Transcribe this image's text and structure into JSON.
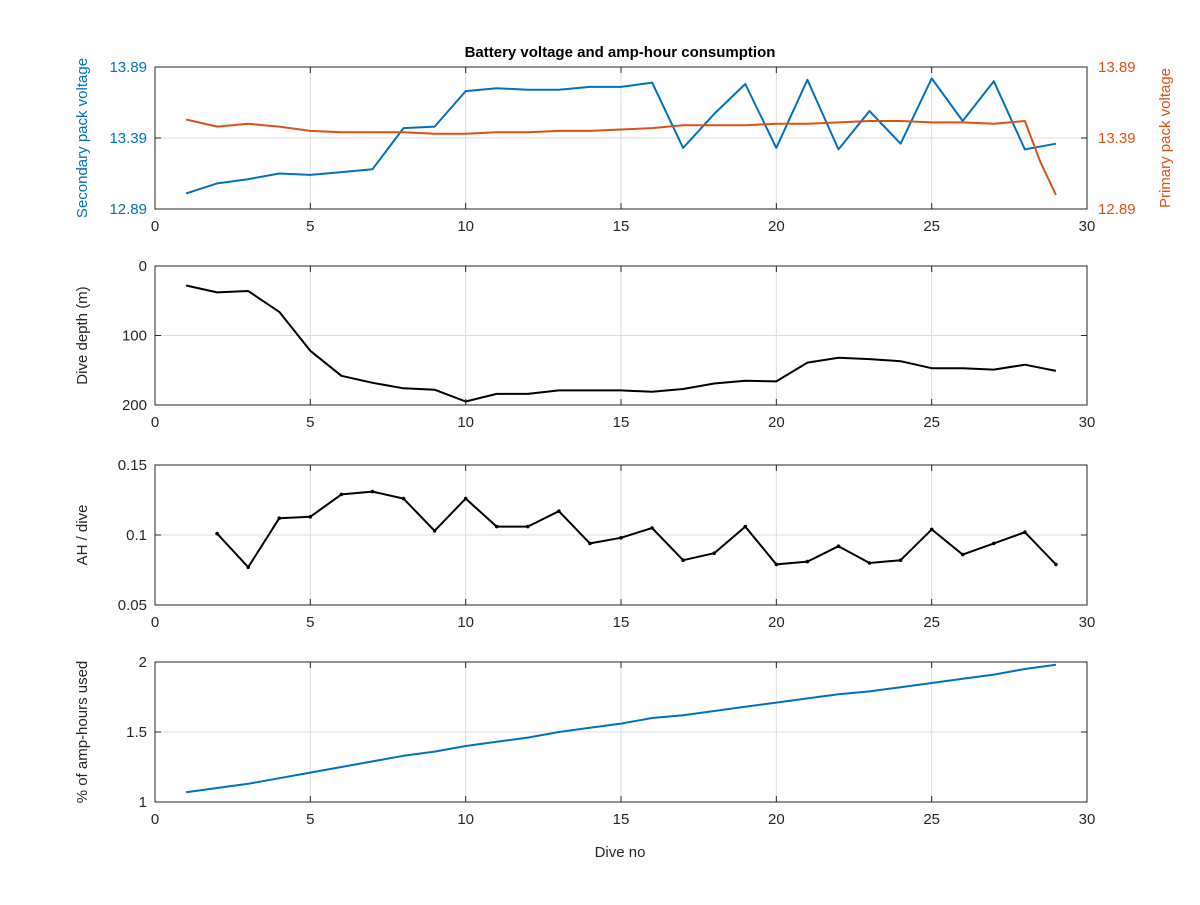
{
  "figure": {
    "title": "Battery voltage and amp-hour consumption",
    "xlabel": "Dive no"
  },
  "colors": {
    "secondary": "#0072BD",
    "primary": "#D95319",
    "black": "#000000",
    "grid": "#dcdcdc",
    "axis": "#262626"
  },
  "chart_data": [
    {
      "type": "line",
      "title": "Battery voltage and amp-hour consumption",
      "xlabel": "",
      "ylabel": "Secondary pack voltage",
      "ylabel_right": "Primary pack voltage",
      "xlim": [
        0,
        30
      ],
      "xticks": [
        0,
        5,
        10,
        15,
        20,
        25,
        30
      ],
      "ylim": [
        12.89,
        13.89
      ],
      "yticks": [
        12.89,
        13.39,
        13.89
      ],
      "ylim_right": [
        12.89,
        13.89
      ],
      "yticks_right": [
        12.89,
        13.39,
        13.89
      ],
      "grid": true,
      "series": [
        {
          "axis": "left",
          "color": "#0072BD",
          "x": [
            1,
            2,
            3,
            4,
            5,
            6,
            7,
            8,
            9,
            10,
            11,
            12,
            13,
            14,
            15,
            16,
            17,
            18,
            19,
            20,
            21,
            22,
            23,
            24,
            25,
            26,
            27,
            28,
            29
          ],
          "values": [
            13.0,
            13.07,
            13.1,
            13.14,
            13.13,
            13.15,
            13.17,
            13.46,
            13.47,
            13.72,
            13.74,
            13.73,
            13.73,
            13.75,
            13.75,
            13.78,
            13.32,
            13.56,
            13.77,
            13.32,
            13.8,
            13.31,
            13.58,
            13.35,
            13.81,
            13.51,
            13.79,
            13.31,
            13.35
          ]
        },
        {
          "axis": "right",
          "color": "#D95319",
          "x": [
            1,
            2,
            3,
            4,
            5,
            6,
            7,
            8,
            9,
            10,
            11,
            12,
            13,
            14,
            15,
            16,
            17,
            18,
            19,
            20,
            21,
            22,
            23,
            24,
            25,
            26,
            27,
            28,
            28.5,
            29
          ],
          "values": [
            13.52,
            13.47,
            13.49,
            13.47,
            13.44,
            13.43,
            13.43,
            13.43,
            13.42,
            13.42,
            13.43,
            13.43,
            13.44,
            13.44,
            13.45,
            13.46,
            13.48,
            13.48,
            13.48,
            13.49,
            13.49,
            13.5,
            13.51,
            13.51,
            13.5,
            13.5,
            13.49,
            13.51,
            13.22,
            12.99
          ]
        }
      ]
    },
    {
      "type": "line",
      "title": "",
      "xlabel": "",
      "ylabel": "Dive depth (m)",
      "xlim": [
        0,
        30
      ],
      "xticks": [
        0,
        5,
        10,
        15,
        20,
        25,
        30
      ],
      "ylim": [
        0,
        200
      ],
      "yticks": [
        0,
        100,
        200
      ],
      "yreversed": true,
      "grid": true,
      "series": [
        {
          "color": "#000000",
          "x": [
            1,
            2,
            3,
            4,
            5,
            6,
            7,
            8,
            9,
            10,
            11,
            12,
            13,
            14,
            15,
            16,
            17,
            18,
            19,
            20,
            21,
            22,
            23,
            24,
            25,
            26,
            27,
            28,
            29
          ],
          "values": [
            28,
            38,
            36,
            66,
            122,
            158,
            168,
            176,
            178,
            195,
            184,
            184,
            179,
            179,
            179,
            181,
            177,
            169,
            165,
            166,
            139,
            132,
            134,
            137,
            147,
            147,
            149,
            142,
            151
          ]
        }
      ]
    },
    {
      "type": "line",
      "title": "",
      "xlabel": "",
      "ylabel": "AH / dive",
      "xlim": [
        0,
        30
      ],
      "xticks": [
        0,
        5,
        10,
        15,
        20,
        25,
        30
      ],
      "ylim": [
        0.05,
        0.15
      ],
      "yticks": [
        0.05,
        0.1,
        0.15
      ],
      "grid": true,
      "series": [
        {
          "color": "#000000",
          "marker": "point",
          "x": [
            2,
            3,
            4,
            5,
            6,
            7,
            8,
            9,
            10,
            11,
            12,
            13,
            14,
            15,
            16,
            17,
            18,
            19,
            20,
            21,
            22,
            23,
            24,
            25,
            26,
            27,
            28,
            29
          ],
          "values": [
            0.101,
            0.077,
            0.112,
            0.113,
            0.129,
            0.131,
            0.126,
            0.103,
            0.126,
            0.106,
            0.106,
            0.117,
            0.094,
            0.098,
            0.105,
            0.082,
            0.087,
            0.106,
            0.079,
            0.081,
            0.092,
            0.08,
            0.082,
            0.104,
            0.086,
            0.094,
            0.102,
            0.079
          ]
        }
      ]
    },
    {
      "type": "line",
      "title": "",
      "xlabel": "Dive no",
      "ylabel": "% of amp-hours used",
      "xlim": [
        0,
        30
      ],
      "xticks": [
        0,
        5,
        10,
        15,
        20,
        25,
        30
      ],
      "ylim": [
        1,
        2
      ],
      "yticks": [
        1,
        1.5,
        2
      ],
      "grid": true,
      "series": [
        {
          "color": "#0072BD",
          "x": [
            1,
            2,
            3,
            4,
            5,
            6,
            7,
            8,
            9,
            10,
            11,
            12,
            13,
            14,
            15,
            16,
            17,
            18,
            19,
            20,
            21,
            22,
            23,
            24,
            25,
            26,
            27,
            28,
            29
          ],
          "values": [
            1.07,
            1.1,
            1.13,
            1.17,
            1.21,
            1.25,
            1.29,
            1.33,
            1.36,
            1.4,
            1.43,
            1.46,
            1.5,
            1.53,
            1.56,
            1.6,
            1.62,
            1.65,
            1.68,
            1.71,
            1.74,
            1.77,
            1.79,
            1.82,
            1.85,
            1.88,
            1.91,
            1.95,
            1.98
          ]
        }
      ]
    }
  ]
}
